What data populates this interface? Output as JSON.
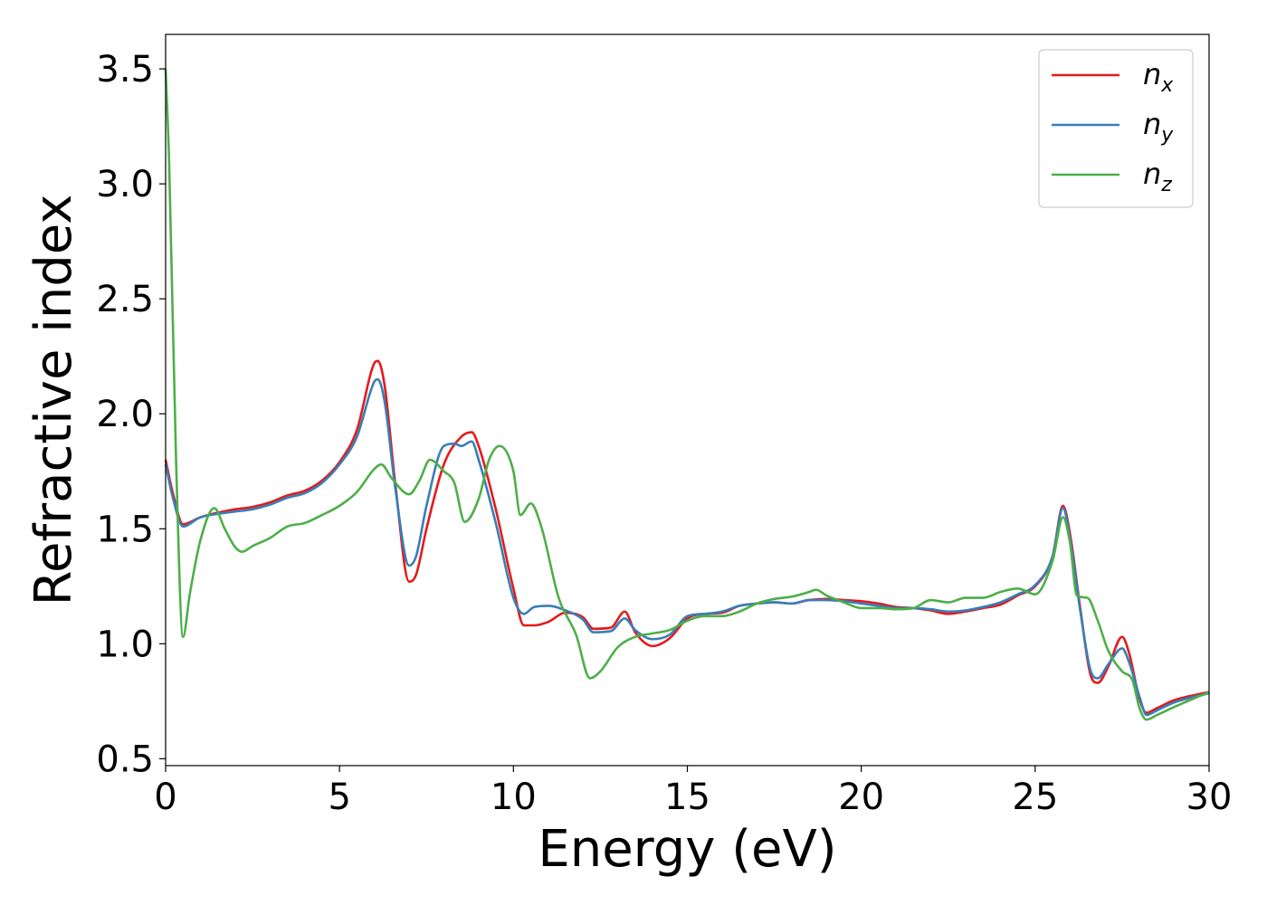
{
  "chart_data": {
    "type": "line",
    "xlabel": "Energy (eV)",
    "ylabel": "Refractive index",
    "xlim": [
      0,
      30
    ],
    "ylim": [
      0.47,
      3.65
    ],
    "xticks": [
      0,
      5,
      10,
      15,
      20,
      25,
      30
    ],
    "xtick_labels": [
      "0",
      "5",
      "10",
      "15",
      "20",
      "25",
      "30"
    ],
    "yticks": [
      0.5,
      1.0,
      1.5,
      2.0,
      2.5,
      3.0,
      3.5
    ],
    "ytick_labels": [
      "0.5",
      "1.0",
      "1.5",
      "2.0",
      "2.5",
      "3.0",
      "3.5"
    ],
    "grid": false,
    "legend_position": "top-right",
    "series": [
      {
        "name": "n",
        "subscript": "x",
        "color": "#e41a1c",
        "points": [
          [
            0,
            1.8
          ],
          [
            0.2,
            1.66
          ],
          [
            0.5,
            1.52
          ],
          [
            1.0,
            1.55
          ],
          [
            1.5,
            1.57
          ],
          [
            2.0,
            1.585
          ],
          [
            2.5,
            1.595
          ],
          [
            3.0,
            1.615
          ],
          [
            3.5,
            1.645
          ],
          [
            4.0,
            1.665
          ],
          [
            4.5,
            1.71
          ],
          [
            5.0,
            1.79
          ],
          [
            5.5,
            1.93
          ],
          [
            6.0,
            2.22
          ],
          [
            6.1,
            2.23
          ],
          [
            6.3,
            2.12
          ],
          [
            6.6,
            1.7
          ],
          [
            7.0,
            1.27
          ],
          [
            7.2,
            1.3
          ],
          [
            7.5,
            1.5
          ],
          [
            8.0,
            1.78
          ],
          [
            8.5,
            1.9
          ],
          [
            8.8,
            1.92
          ],
          [
            9.0,
            1.86
          ],
          [
            9.5,
            1.58
          ],
          [
            10.0,
            1.24
          ],
          [
            10.3,
            1.08
          ],
          [
            10.6,
            1.08
          ],
          [
            11.0,
            1.095
          ],
          [
            11.5,
            1.135
          ],
          [
            12.0,
            1.115
          ],
          [
            12.3,
            1.065
          ],
          [
            12.8,
            1.07
          ],
          [
            13.2,
            1.14
          ],
          [
            13.5,
            1.05
          ],
          [
            14.0,
            0.99
          ],
          [
            14.5,
            1.025
          ],
          [
            15.0,
            1.11
          ],
          [
            15.5,
            1.13
          ],
          [
            16.0,
            1.135
          ],
          [
            16.5,
            1.165
          ],
          [
            17.0,
            1.175
          ],
          [
            17.5,
            1.18
          ],
          [
            18.0,
            1.175
          ],
          [
            18.5,
            1.19
          ],
          [
            19.0,
            1.195
          ],
          [
            19.5,
            1.19
          ],
          [
            20.0,
            1.185
          ],
          [
            20.5,
            1.175
          ],
          [
            21.0,
            1.16
          ],
          [
            21.5,
            1.155
          ],
          [
            22.0,
            1.145
          ],
          [
            22.5,
            1.13
          ],
          [
            23.0,
            1.14
          ],
          [
            23.5,
            1.155
          ],
          [
            24.0,
            1.17
          ],
          [
            24.5,
            1.21
          ],
          [
            25.0,
            1.25
          ],
          [
            25.5,
            1.38
          ],
          [
            25.8,
            1.6
          ],
          [
            26.0,
            1.48
          ],
          [
            26.3,
            1.15
          ],
          [
            26.6,
            0.86
          ],
          [
            26.8,
            0.83
          ],
          [
            27.1,
            0.9
          ],
          [
            27.5,
            1.03
          ],
          [
            27.7,
            0.96
          ],
          [
            28.0,
            0.76
          ],
          [
            28.2,
            0.7
          ],
          [
            28.5,
            0.72
          ],
          [
            29.0,
            0.755
          ],
          [
            30.0,
            0.79
          ]
        ]
      },
      {
        "name": "n",
        "subscript": "y",
        "color": "#377eb8",
        "points": [
          [
            0,
            1.78
          ],
          [
            0.2,
            1.64
          ],
          [
            0.5,
            1.51
          ],
          [
            1.0,
            1.55
          ],
          [
            1.5,
            1.565
          ],
          [
            2.0,
            1.575
          ],
          [
            2.5,
            1.585
          ],
          [
            3.0,
            1.605
          ],
          [
            3.5,
            1.635
          ],
          [
            4.0,
            1.655
          ],
          [
            4.5,
            1.7
          ],
          [
            5.0,
            1.78
          ],
          [
            5.5,
            1.9
          ],
          [
            6.0,
            2.14
          ],
          [
            6.1,
            2.15
          ],
          [
            6.3,
            2.05
          ],
          [
            6.6,
            1.68
          ],
          [
            7.0,
            1.34
          ],
          [
            7.2,
            1.38
          ],
          [
            7.5,
            1.6
          ],
          [
            8.0,
            1.86
          ],
          [
            8.3,
            1.87
          ],
          [
            8.5,
            1.86
          ],
          [
            8.8,
            1.88
          ],
          [
            9.0,
            1.8
          ],
          [
            9.5,
            1.52
          ],
          [
            10.0,
            1.2
          ],
          [
            10.3,
            1.13
          ],
          [
            10.6,
            1.16
          ],
          [
            11.0,
            1.165
          ],
          [
            11.5,
            1.145
          ],
          [
            12.0,
            1.105
          ],
          [
            12.3,
            1.05
          ],
          [
            12.8,
            1.055
          ],
          [
            13.2,
            1.11
          ],
          [
            13.5,
            1.06
          ],
          [
            14.0,
            1.02
          ],
          [
            14.5,
            1.04
          ],
          [
            15.0,
            1.12
          ],
          [
            15.5,
            1.13
          ],
          [
            16.0,
            1.14
          ],
          [
            16.5,
            1.165
          ],
          [
            17.0,
            1.175
          ],
          [
            17.5,
            1.18
          ],
          [
            18.0,
            1.175
          ],
          [
            18.5,
            1.19
          ],
          [
            19.0,
            1.19
          ],
          [
            19.5,
            1.185
          ],
          [
            20.0,
            1.175
          ],
          [
            20.5,
            1.165
          ],
          [
            21.0,
            1.155
          ],
          [
            21.5,
            1.155
          ],
          [
            22.0,
            1.15
          ],
          [
            22.5,
            1.14
          ],
          [
            23.0,
            1.145
          ],
          [
            23.5,
            1.16
          ],
          [
            24.0,
            1.18
          ],
          [
            24.5,
            1.215
          ],
          [
            25.0,
            1.255
          ],
          [
            25.5,
            1.38
          ],
          [
            25.8,
            1.59
          ],
          [
            26.0,
            1.46
          ],
          [
            26.3,
            1.14
          ],
          [
            26.6,
            0.88
          ],
          [
            26.8,
            0.85
          ],
          [
            27.1,
            0.91
          ],
          [
            27.5,
            0.98
          ],
          [
            27.7,
            0.92
          ],
          [
            28.0,
            0.77
          ],
          [
            28.2,
            0.69
          ],
          [
            28.5,
            0.71
          ],
          [
            29.0,
            0.745
          ],
          [
            30.0,
            0.785
          ]
        ]
      },
      {
        "name": "n",
        "subscript": "z",
        "color": "#4daf4a",
        "points": [
          [
            0,
            3.5
          ],
          [
            0.1,
            3.1
          ],
          [
            0.3,
            1.8
          ],
          [
            0.5,
            1.03
          ],
          [
            0.7,
            1.22
          ],
          [
            1.0,
            1.45
          ],
          [
            1.4,
            1.59
          ],
          [
            1.7,
            1.5
          ],
          [
            2.0,
            1.42
          ],
          [
            2.2,
            1.4
          ],
          [
            2.5,
            1.425
          ],
          [
            3.0,
            1.46
          ],
          [
            3.5,
            1.51
          ],
          [
            4.0,
            1.525
          ],
          [
            4.5,
            1.56
          ],
          [
            5.0,
            1.6
          ],
          [
            5.5,
            1.66
          ],
          [
            6.0,
            1.76
          ],
          [
            6.2,
            1.78
          ],
          [
            6.5,
            1.72
          ],
          [
            7.0,
            1.65
          ],
          [
            7.3,
            1.71
          ],
          [
            7.6,
            1.8
          ],
          [
            8.0,
            1.75
          ],
          [
            8.3,
            1.7
          ],
          [
            8.6,
            1.53
          ],
          [
            9.0,
            1.63
          ],
          [
            9.3,
            1.8
          ],
          [
            9.6,
            1.86
          ],
          [
            10.0,
            1.75
          ],
          [
            10.2,
            1.56
          ],
          [
            10.5,
            1.61
          ],
          [
            10.8,
            1.51
          ],
          [
            11.3,
            1.2
          ],
          [
            11.8,
            1.04
          ],
          [
            12.2,
            0.85
          ],
          [
            12.5,
            0.88
          ],
          [
            13.0,
            0.985
          ],
          [
            13.5,
            1.03
          ],
          [
            14.0,
            1.045
          ],
          [
            14.5,
            1.06
          ],
          [
            15.0,
            1.1
          ],
          [
            15.5,
            1.12
          ],
          [
            16.0,
            1.12
          ],
          [
            16.5,
            1.14
          ],
          [
            17.0,
            1.175
          ],
          [
            17.5,
            1.195
          ],
          [
            18.0,
            1.205
          ],
          [
            18.5,
            1.225
          ],
          [
            18.7,
            1.235
          ],
          [
            19.0,
            1.21
          ],
          [
            19.5,
            1.18
          ],
          [
            20.0,
            1.155
          ],
          [
            20.5,
            1.155
          ],
          [
            21.0,
            1.15
          ],
          [
            21.5,
            1.155
          ],
          [
            22.0,
            1.19
          ],
          [
            22.5,
            1.18
          ],
          [
            23.0,
            1.2
          ],
          [
            23.5,
            1.2
          ],
          [
            24.0,
            1.225
          ],
          [
            24.5,
            1.24
          ],
          [
            25.0,
            1.215
          ],
          [
            25.5,
            1.36
          ],
          [
            25.8,
            1.55
          ],
          [
            26.0,
            1.44
          ],
          [
            26.2,
            1.21
          ],
          [
            26.5,
            1.2
          ],
          [
            26.8,
            1.1
          ],
          [
            27.1,
            0.97
          ],
          [
            27.5,
            0.88
          ],
          [
            27.8,
            0.84
          ],
          [
            28.0,
            0.72
          ],
          [
            28.2,
            0.67
          ],
          [
            28.5,
            0.69
          ],
          [
            29.0,
            0.725
          ],
          [
            30.0,
            0.79
          ]
        ]
      }
    ]
  }
}
